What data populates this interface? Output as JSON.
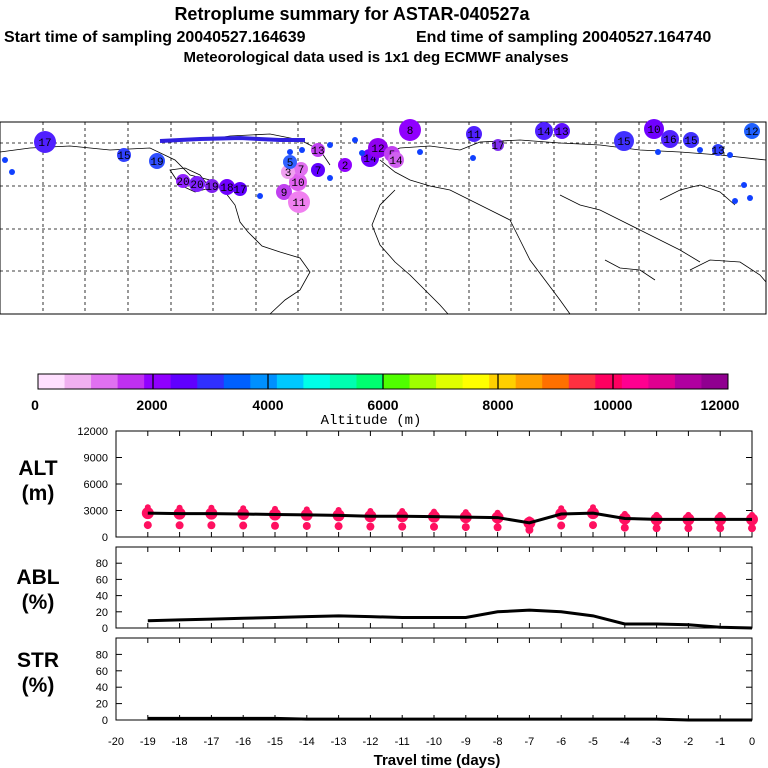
{
  "header": {
    "title": "Retroplume summary for ASTAR-040527a",
    "start_label": "Start time of sampling 20040527.164639",
    "end_label": "End time of sampling 20040527.164740",
    "met_label": "Meteorological data used is 1x1 deg ECMWF analyses"
  },
  "colors": {
    "scale": [
      "#ffe0ff",
      "#f0b0f0",
      "#e070f0",
      "#c030f0",
      "#9000ff",
      "#6000ff",
      "#3030ff",
      "#0060ff",
      "#0090ff",
      "#00c8ff",
      "#00ffe8",
      "#00ffb0",
      "#00ff70",
      "#50ff00",
      "#a0ff00",
      "#e0ff00",
      "#ffff00",
      "#ffd000",
      "#ffa000",
      "#ff7000",
      "#ff3040",
      "#ff0060",
      "#ff0090",
      "#e00090",
      "#b000a0",
      "#900090"
    ],
    "track": "#000000",
    "data_points": "#ff1060"
  },
  "colorbar": {
    "ticks": [
      "0",
      "2000",
      "4000",
      "6000",
      "8000",
      "10000",
      "12000"
    ],
    "label": "Altitude (m)"
  },
  "map": {
    "labels": [
      {
        "text": "17",
        "c": "#5020ff"
      },
      {
        "text": "15",
        "c": "#3040ff"
      },
      {
        "text": "19",
        "c": "#3050ff"
      },
      {
        "text": "20",
        "c": "#9020ff"
      },
      {
        "text": "20",
        "c": "#8020ff"
      },
      {
        "text": "19",
        "c": "#8020f0"
      },
      {
        "text": "18",
        "c": "#7000ff"
      },
      {
        "text": "17",
        "c": "#6000ff"
      },
      {
        "text": "9",
        "c": "#c040f0"
      },
      {
        "text": "10",
        "c": "#e060f0"
      },
      {
        "text": "11",
        "c": "#f080f0"
      },
      {
        "text": "7",
        "c": "#e070f0"
      },
      {
        "text": "3",
        "c": "#f0a0f0"
      },
      {
        "text": "5",
        "c": "#3060ff"
      },
      {
        "text": "7",
        "c": "#6000ff"
      },
      {
        "text": "2",
        "c": "#9000ff"
      },
      {
        "text": "14",
        "c": "#7000ff"
      },
      {
        "text": "12",
        "c": "#9000f0"
      },
      {
        "text": "5",
        "c": "#c040f0"
      },
      {
        "text": "14",
        "c": "#d060f0"
      },
      {
        "text": "13",
        "c": "#c040f0"
      },
      {
        "text": "8",
        "c": "#9000ff"
      },
      {
        "text": "11",
        "c": "#5020ff"
      },
      {
        "text": "17",
        "c": "#8030f0"
      },
      {
        "text": "14",
        "c": "#5020ff"
      },
      {
        "text": "13",
        "c": "#6010ff"
      },
      {
        "text": "15",
        "c": "#4030ff"
      },
      {
        "text": "10",
        "c": "#7000ff"
      },
      {
        "text": "16",
        "c": "#5020ff"
      },
      {
        "text": "15",
        "c": "#4030ff"
      },
      {
        "text": "13",
        "c": "#3040ff"
      },
      {
        "text": "12",
        "c": "#2060ff"
      }
    ]
  },
  "chart_data": [
    {
      "type": "scatter",
      "panel": "ALT",
      "ylabel": "ALT (m)",
      "ylim": [
        0,
        12000
      ],
      "yticks": [
        "12000",
        "9000",
        "6000",
        "3000",
        "0"
      ],
      "x": [
        -19,
        -18,
        -17,
        -16,
        -15,
        -14,
        -13,
        -12,
        -11,
        -10,
        -9,
        -8,
        -7,
        -6,
        -5,
        -4,
        -3,
        -2,
        -1,
        0
      ],
      "series": [
        {
          "name": "mean altitude",
          "values": [
            2700,
            2650,
            2650,
            2600,
            2550,
            2500,
            2450,
            2350,
            2350,
            2300,
            2250,
            2200,
            1600,
            2600,
            2700,
            2100,
            2000,
            2000,
            2000,
            2000
          ]
        }
      ]
    },
    {
      "type": "line",
      "panel": "ABL",
      "ylabel": "ABL (%)",
      "ylim": [
        0,
        100
      ],
      "yticks": [
        "80",
        "60",
        "40",
        "20",
        "0"
      ],
      "x": [
        -19,
        -18,
        -17,
        -16,
        -15,
        -14,
        -13,
        -12,
        -11,
        -10,
        -9,
        -8,
        -7,
        -6,
        -5,
        -4,
        -3,
        -2,
        -1,
        0
      ],
      "series": [
        {
          "name": "ABL fraction",
          "values": [
            9,
            10,
            11,
            12,
            13,
            14,
            15,
            14,
            13,
            13,
            13,
            20,
            22,
            20,
            15,
            5,
            5,
            4,
            1,
            0
          ]
        }
      ]
    },
    {
      "type": "line",
      "panel": "STR",
      "ylabel": "STR (%)",
      "ylim": [
        0,
        100
      ],
      "yticks": [
        "80",
        "60",
        "40",
        "20",
        "0"
      ],
      "x": [
        -19,
        -18,
        -17,
        -16,
        -15,
        -14,
        -13,
        -12,
        -11,
        -10,
        -9,
        -8,
        -7,
        -6,
        -5,
        -4,
        -3,
        -2,
        -1,
        0
      ],
      "series": [
        {
          "name": "stratosphere fraction",
          "values": [
            2,
            2,
            2,
            2,
            2,
            1,
            1,
            1,
            1,
            1,
            1,
            1,
            1,
            1,
            1,
            1,
            1,
            0,
            0,
            0
          ]
        }
      ]
    }
  ],
  "xaxis": {
    "ticks": [
      "-20",
      "-19",
      "-18",
      "-17",
      "-16",
      "-15",
      "-14",
      "-13",
      "-12",
      "-11",
      "-10",
      "-9",
      "-8",
      "-7",
      "-6",
      "-5",
      "-4",
      "-3",
      "-2",
      "-1",
      "0"
    ],
    "label": "Travel time (days)"
  },
  "panels": {
    "alt_title": "ALT",
    "alt_unit": "(m)",
    "abl_title": "ABL",
    "abl_unit": "(%)",
    "str_title": "STR",
    "str_unit": "(%)"
  }
}
